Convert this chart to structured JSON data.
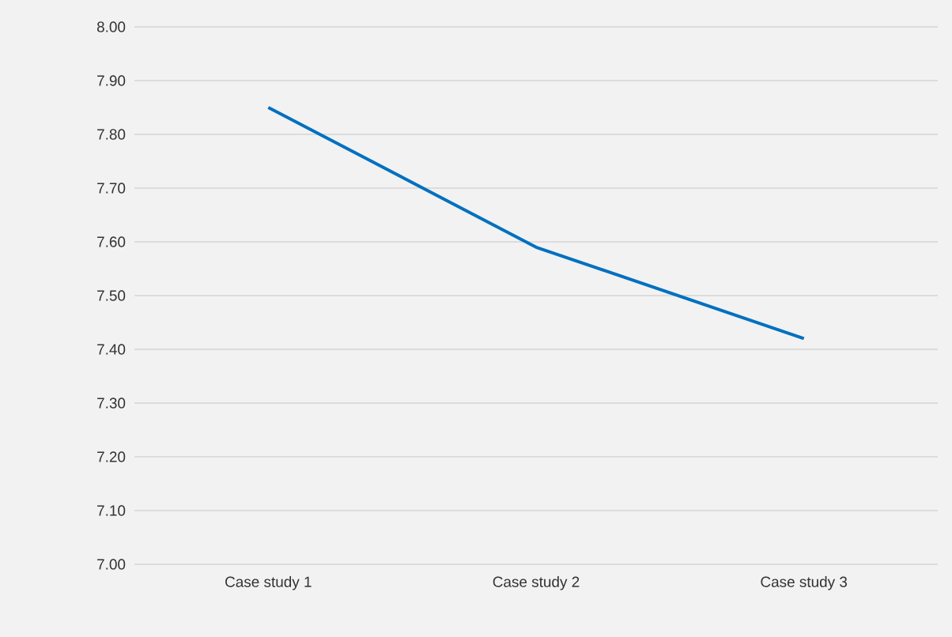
{
  "chart_data": {
    "type": "line",
    "categories": [
      "Case study 1",
      "Case study 2",
      "Case study 3"
    ],
    "series": [
      {
        "color": "#0070c0",
        "values": [
          7.85,
          7.59,
          7.42
        ]
      }
    ],
    "ylim": [
      7.0,
      8.0
    ],
    "yticks": [
      {
        "value": 7.0,
        "label": "7.00"
      },
      {
        "value": 7.1,
        "label": "7.10"
      },
      {
        "value": 7.2,
        "label": "7.20"
      },
      {
        "value": 7.3,
        "label": "7.30"
      },
      {
        "value": 7.4,
        "label": "7.40"
      },
      {
        "value": 7.5,
        "label": "7.50"
      },
      {
        "value": 7.6,
        "label": "7.60"
      },
      {
        "value": 7.7,
        "label": "7.70"
      },
      {
        "value": 7.8,
        "label": "7.80"
      },
      {
        "value": 7.9,
        "label": "7.90"
      },
      {
        "value": 8.0,
        "label": "8.00"
      }
    ],
    "grid": "y"
  }
}
